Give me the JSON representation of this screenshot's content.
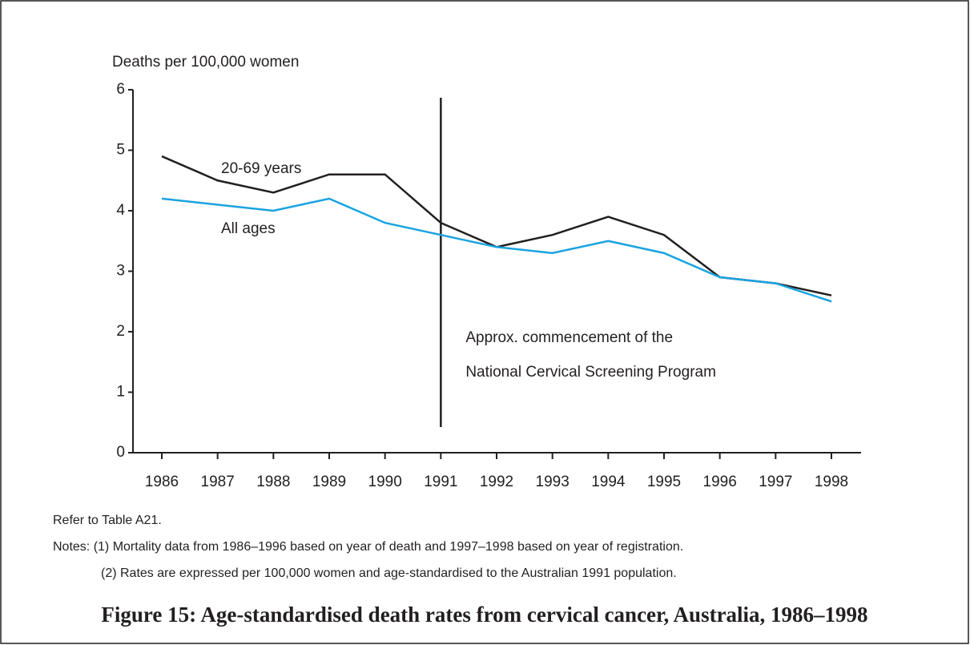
{
  "chart_data": {
    "type": "line",
    "y_axis_label": "Deaths per 100,000 women",
    "categories": [
      "1986",
      "1987",
      "1988",
      "1989",
      "1990",
      "1991",
      "1992",
      "1993",
      "1994",
      "1995",
      "1996",
      "1997",
      "1998"
    ],
    "series": [
      {
        "name": "20-69 years",
        "color": "#231f20",
        "values": [
          4.9,
          4.5,
          4.3,
          4.6,
          4.6,
          3.8,
          3.4,
          3.6,
          3.9,
          3.6,
          2.9,
          2.8,
          2.6
        ]
      },
      {
        "name": "All ages",
        "color": "#1aa3e0",
        "values": [
          4.2,
          4.1,
          4.0,
          4.2,
          3.8,
          3.6,
          3.4,
          3.3,
          3.5,
          3.3,
          2.9,
          2.8,
          2.5
        ]
      }
    ],
    "ylim": [
      0,
      6
    ],
    "yticks": [
      0,
      1,
      2,
      3,
      4,
      5,
      6
    ],
    "annotation": {
      "x": "1991",
      "text": [
        "Approx. commencement of the",
        "National Cervical Screening Program"
      ]
    },
    "notes": [
      "Refer to Table A21.",
      "Notes: (1)  Mortality data from 1986–1996 based on year of death and 1997–1998 based on year of registration.",
      "(2) Rates are expressed per 100,000 women and age-standardised to the Australian 1991 population."
    ],
    "caption": "Figure 15: Age-standardised death rates from cervical cancer, Australia, 1986–1998"
  }
}
